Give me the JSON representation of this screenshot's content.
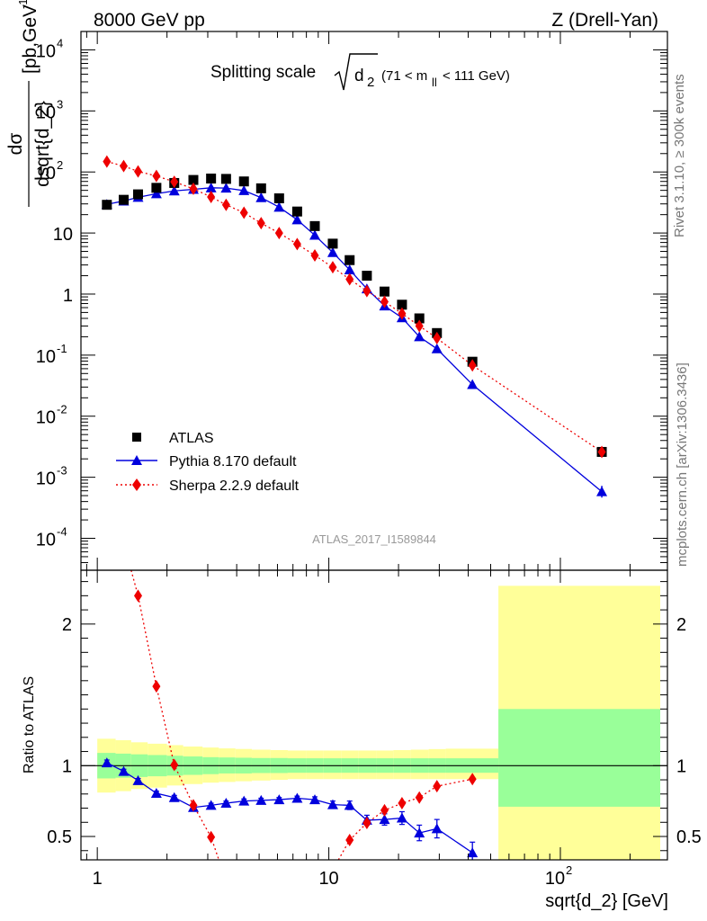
{
  "header": {
    "left": "8000 GeV pp",
    "right": "Z (Drell-Yan)"
  },
  "side_labels": {
    "rivet": "Rivet 3.1.10, ≥ 300k events",
    "mcplots": "mcplots.cern.ch [arXiv:1306.3436]"
  },
  "analysis_id": "ATLAS_2017_I1589844",
  "chart_data": [
    {
      "type": "scatter",
      "panel": "main",
      "title": "Splitting scale √d₂ (71 < m_ll < 111 GeV)",
      "title_main": "Splitting scale",
      "title_sqrt_arg": "d",
      "title_sqrt_sub": "2",
      "title_range": "(71 < m",
      "title_range_sub": "ll",
      "title_range_end": "< 111 GeV)",
      "xlabel": "",
      "ylabel": "dσ/dsqrt{d_2} [pb,GeV⁻¹]",
      "ylabel_num": "dσ",
      "ylabel_den": "dsqrt{d_2}",
      "ylabel_unit": "[pb,GeV",
      "ylabel_unit_sup": "-1",
      "ylabel_unit_end": "]",
      "x_scale": "log",
      "y_scale": "log",
      "xlim": [
        0.85,
        290
      ],
      "ylim": [
        3e-05,
        20000
      ],
      "y_ticks": [
        {
          "value": 0.0001,
          "base": "10",
          "exp": "-4"
        },
        {
          "value": 0.001,
          "base": "10",
          "exp": "-3"
        },
        {
          "value": 0.01,
          "base": "10",
          "exp": "-2"
        },
        {
          "value": 0.1,
          "base": "10",
          "exp": "-1"
        },
        {
          "value": 1,
          "base": "1",
          "exp": ""
        },
        {
          "value": 10,
          "base": "10",
          "exp": ""
        },
        {
          "value": 100,
          "base": "10",
          "exp": "2"
        },
        {
          "value": 1000,
          "base": "10",
          "exp": "3"
        },
        {
          "value": 10000,
          "base": "10",
          "exp": "4"
        }
      ],
      "legend_position": "lower-left",
      "series": [
        {
          "name": "ATLAS",
          "color": "#000000",
          "marker": "square",
          "points": [
            [
              1.1,
              29
            ],
            [
              1.3,
              35
            ],
            [
              1.5,
              43
            ],
            [
              1.8,
              55
            ],
            [
              2.15,
              66
            ],
            [
              2.6,
              74
            ],
            [
              3.1,
              78
            ],
            [
              3.6,
              77
            ],
            [
              4.3,
              70
            ],
            [
              5.1,
              54
            ],
            [
              6.1,
              37
            ],
            [
              7.3,
              22.5
            ],
            [
              8.7,
              13
            ],
            [
              10.4,
              6.7
            ],
            [
              12.3,
              3.6
            ],
            [
              14.6,
              2.0
            ],
            [
              17.4,
              1.1
            ],
            [
              20.7,
              0.67
            ],
            [
              24.6,
              0.4
            ],
            [
              29.3,
              0.23
            ],
            [
              41.7,
              0.078
            ],
            [
              151,
              0.0026
            ]
          ]
        },
        {
          "name": "Pythia 8.170 default",
          "color": "#0000dd",
          "marker": "triangle",
          "line": "solid",
          "points": [
            [
              1.1,
              29.5
            ],
            [
              1.3,
              33.5
            ],
            [
              1.5,
              38.5
            ],
            [
              1.8,
              44
            ],
            [
              2.15,
              49
            ],
            [
              2.6,
              52
            ],
            [
              3.1,
              55
            ],
            [
              3.6,
              54.5
            ],
            [
              4.3,
              49.5
            ],
            [
              5.1,
              38
            ],
            [
              6.1,
              26.5
            ],
            [
              7.3,
              16.5
            ],
            [
              8.7,
              9.2
            ],
            [
              10.4,
              4.8
            ],
            [
              12.3,
              2.5
            ],
            [
              14.6,
              1.22
            ],
            [
              17.4,
              0.64
            ],
            [
              20.7,
              0.41
            ],
            [
              24.6,
              0.2
            ],
            [
              29.3,
              0.127
            ],
            [
              41.7,
              0.033
            ],
            [
              151,
              0.00058
            ]
          ]
        },
        {
          "name": "Sherpa 2.2.9 default",
          "color": "#ee0000",
          "marker": "diamond",
          "line": "dotted",
          "points": [
            [
              1.1,
              148
            ],
            [
              1.3,
              125
            ],
            [
              1.5,
              102
            ],
            [
              1.8,
              86
            ],
            [
              2.15,
              69
            ],
            [
              2.6,
              53
            ],
            [
              3.1,
              39
            ],
            [
              3.6,
              29
            ],
            [
              4.3,
              21.5
            ],
            [
              5.1,
              14.5
            ],
            [
              6.1,
              10
            ],
            [
              7.3,
              6.6
            ],
            [
              8.7,
              4.3
            ],
            [
              10.4,
              2.75
            ],
            [
              12.3,
              1.75
            ],
            [
              14.6,
              1.12
            ],
            [
              17.4,
              0.75
            ],
            [
              20.7,
              0.48
            ],
            [
              24.6,
              0.3
            ],
            [
              29.3,
              0.19
            ],
            [
              41.7,
              0.068
            ],
            [
              151,
              0.0026
            ]
          ]
        }
      ]
    },
    {
      "type": "line",
      "panel": "ratio",
      "xlabel": "sqrt{d_2} [GeV]",
      "ylabel": "Ratio to ATLAS",
      "x_scale": "log",
      "xlim": [
        0.85,
        290
      ],
      "ylim": [
        0.335,
        2.38
      ],
      "y_ticks": [
        {
          "value": 0.5,
          "label": "0.5"
        },
        {
          "value": 1,
          "label": "1"
        },
        {
          "value": 2,
          "label": "2"
        }
      ],
      "x_ticks": [
        {
          "value": 1,
          "base": "1",
          "exp": ""
        },
        {
          "value": 10,
          "base": "10",
          "exp": ""
        },
        {
          "value": 100,
          "base": "10",
          "exp": "2"
        }
      ],
      "uncertainty_bands": {
        "bins": [
          [
            1.0,
            1.2
          ],
          [
            1.2,
            1.4
          ],
          [
            1.4,
            1.65
          ],
          [
            1.65,
            2.0
          ],
          [
            2.0,
            2.35
          ],
          [
            2.35,
            2.85
          ],
          [
            2.85,
            3.35
          ],
          [
            3.35,
            3.95
          ],
          [
            3.95,
            4.65
          ],
          [
            4.65,
            5.6
          ],
          [
            5.6,
            6.65
          ],
          [
            6.65,
            8.0
          ],
          [
            8.0,
            9.5
          ],
          [
            9.5,
            11.3
          ],
          [
            11.3,
            13.4
          ],
          [
            13.4,
            16.0
          ],
          [
            16.0,
            19.0
          ],
          [
            19.0,
            22.6
          ],
          [
            22.6,
            27.0
          ],
          [
            27.0,
            32.0
          ],
          [
            32.0,
            54.0
          ],
          [
            54.0,
            270.0
          ]
        ],
        "stat_color": "#99ff99",
        "total_color": "#ffff99",
        "stat": [
          [
            0.91,
            1.09
          ],
          [
            0.915,
            1.085
          ],
          [
            0.92,
            1.08
          ],
          [
            0.925,
            1.075
          ],
          [
            0.93,
            1.07
          ],
          [
            0.935,
            1.065
          ],
          [
            0.94,
            1.06
          ],
          [
            0.945,
            1.058
          ],
          [
            0.945,
            1.056
          ],
          [
            0.948,
            1.054
          ],
          [
            0.948,
            1.054
          ],
          [
            0.95,
            1.052
          ],
          [
            0.95,
            1.052
          ],
          [
            0.95,
            1.052
          ],
          [
            0.95,
            1.052
          ],
          [
            0.95,
            1.052
          ],
          [
            0.95,
            1.052
          ],
          [
            0.95,
            1.052
          ],
          [
            0.95,
            1.052
          ],
          [
            0.95,
            1.052
          ],
          [
            0.95,
            1.052
          ],
          [
            0.71,
            1.4
          ]
        ],
        "total": [
          [
            0.81,
            1.19
          ],
          [
            0.82,
            1.18
          ],
          [
            0.835,
            1.165
          ],
          [
            0.845,
            1.155
          ],
          [
            0.86,
            1.145
          ],
          [
            0.87,
            1.135
          ],
          [
            0.88,
            1.128
          ],
          [
            0.885,
            1.122
          ],
          [
            0.89,
            1.118
          ],
          [
            0.895,
            1.113
          ],
          [
            0.9,
            1.11
          ],
          [
            0.905,
            1.107
          ],
          [
            0.905,
            1.107
          ],
          [
            0.905,
            1.107
          ],
          [
            0.905,
            1.107
          ],
          [
            0.905,
            1.107
          ],
          [
            0.905,
            1.107
          ],
          [
            0.905,
            1.11
          ],
          [
            0.905,
            1.113
          ],
          [
            0.905,
            1.117
          ],
          [
            0.905,
            1.12
          ],
          [
            0.3,
            2.27
          ]
        ]
      },
      "series": [
        {
          "name": "Pythia 8.170 default",
          "color": "#0000dd",
          "marker": "triangle",
          "line": "solid",
          "points": [
            [
              1.1,
              1.02
            ],
            [
              1.3,
              0.96
            ],
            [
              1.5,
              0.895
            ],
            [
              1.8,
              0.805
            ],
            [
              2.15,
              0.775
            ],
            [
              2.6,
              0.705
            ],
            [
              3.1,
              0.72
            ],
            [
              3.6,
              0.735
            ],
            [
              4.3,
              0.75
            ],
            [
              5.1,
              0.755
            ],
            [
              6.1,
              0.76
            ],
            [
              7.3,
              0.77
            ],
            [
              8.7,
              0.76
            ],
            [
              10.4,
              0.725
            ],
            [
              12.3,
              0.72
            ],
            [
              14.6,
              0.615
            ],
            [
              17.4,
              0.62
            ],
            [
              20.7,
              0.63
            ],
            [
              24.6,
              0.525
            ],
            [
              29.3,
              0.555
            ],
            [
              41.7,
              0.385
            ]
          ],
          "errors": [
            0.02,
            0.015,
            0.015,
            0.015,
            0.015,
            0.015,
            0.015,
            0.015,
            0.015,
            0.015,
            0.015,
            0.015,
            0.02,
            0.025,
            0.03,
            0.035,
            0.04,
            0.045,
            0.055,
            0.065,
            0.075
          ]
        },
        {
          "name": "Sherpa 2.2.9 default",
          "color": "#ee0000",
          "marker": "diamond",
          "line": "dotted",
          "points": [
            [
              1.5,
              2.2
            ],
            [
              1.8,
              1.56
            ],
            [
              2.15,
              1.005
            ],
            [
              2.6,
              0.72
            ],
            [
              3.1,
              0.495
            ],
            [
              12.3,
              0.475
            ],
            [
              14.6,
              0.595
            ],
            [
              17.4,
              0.685
            ],
            [
              20.7,
              0.735
            ],
            [
              24.6,
              0.775
            ],
            [
              29.3,
              0.855
            ],
            [
              41.7,
              0.905
            ]
          ],
          "line_from": [
            1.4,
            2.38
          ],
          "line_to_gap": [
            [
              3.35,
              0.335
            ],
            [
              11.0,
              0.335
            ]
          ]
        }
      ]
    }
  ]
}
